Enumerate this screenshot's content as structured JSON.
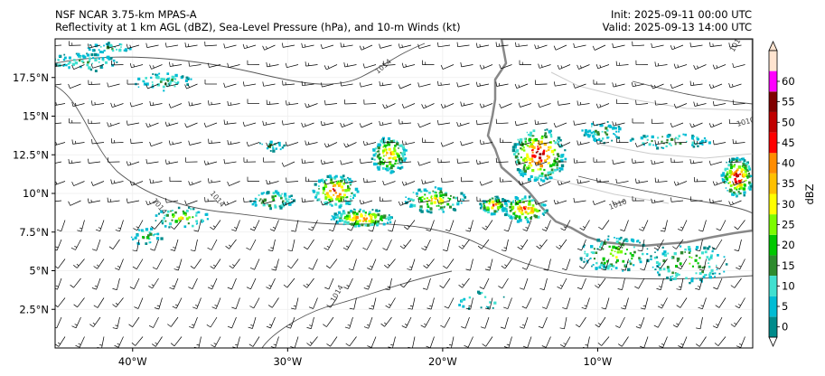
{
  "header": {
    "title_left_1": "NSF NCAR 3.75-km MPAS-A",
    "title_left_2": "Reflectivity at 1 km AGL (dBZ), Sea-Level Pressure (hPa), and 10-m Winds (kt)",
    "title_right_1": "Init: 2025-09-11 00:00 UTC",
    "title_right_2": "Valid: 2025-09-13 14:00 UTC"
  },
  "map": {
    "lon_ticks": [
      {
        "lon": -40,
        "label": "40°W"
      },
      {
        "lon": -30,
        "label": "30°W"
      },
      {
        "lon": -20,
        "label": "20°W"
      },
      {
        "lon": -10,
        "label": "10°W"
      }
    ],
    "lat_ticks": [
      {
        "lat": 17.5,
        "label": "17.5°N"
      },
      {
        "lat": 15,
        "label": "15°N"
      },
      {
        "lat": 12.5,
        "label": "12.5°N"
      },
      {
        "lat": 10,
        "label": "10°N"
      },
      {
        "lat": 7.5,
        "label": "7.5°N"
      },
      {
        "lat": 5,
        "label": "5°N"
      },
      {
        "lat": 2.5,
        "label": "2.5°N"
      }
    ],
    "lon_range": [
      -45,
      0
    ],
    "lat_range": [
      0,
      20
    ],
    "isobar_labels": [
      "1014",
      "1014",
      "1010",
      "1010",
      "1010",
      "1014",
      "1014"
    ],
    "colors": {
      "coast": "#888888",
      "isobar": "#555555",
      "wind_barb": "#000000"
    }
  },
  "colorbar": {
    "label": "dBZ",
    "levels": [
      0,
      5,
      10,
      15,
      20,
      25,
      30,
      35,
      40,
      45,
      50,
      55,
      60
    ],
    "tick_labels": [
      "0",
      "5",
      "10",
      "15",
      "20",
      "25",
      "30",
      "35",
      "40",
      "45",
      "50",
      "55",
      "60"
    ],
    "colors": [
      "#04e9e7",
      "#019ff4",
      "#0300f4",
      "#02fd02",
      "#01c501",
      "#008e00",
      "#fdf802",
      "#e5bc00",
      "#fd9500",
      "#fd0000",
      "#d40000",
      "#bc0000",
      "#f800fd",
      "#9854c6",
      "#fdfdfd"
    ],
    "bins": [
      "#008b8b",
      "#00bcd4",
      "#40e0d0",
      "#2e8b2e",
      "#00c800",
      "#7cfc00",
      "#ffff00",
      "#ffc000",
      "#ff8c00",
      "#ff0000",
      "#c00000",
      "#800000",
      "#ff00ff",
      "#ffe4d0"
    ]
  }
}
